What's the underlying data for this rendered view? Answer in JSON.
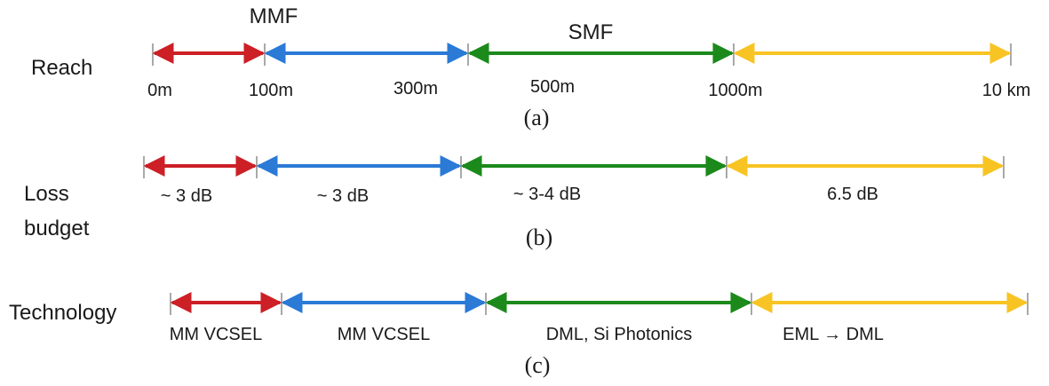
{
  "colors": {
    "red": "#cc1f26",
    "blue": "#2a7ad6",
    "green": "#1b8a1b",
    "yellow": "#f8c424",
    "tick": "#8c8c8c"
  },
  "rows": [
    {
      "id": "reach",
      "label_lines": [
        "Reach"
      ],
      "caption": "(a)",
      "top_labels": [
        "MMF",
        "SMF"
      ],
      "segments": [
        {
          "color": "red"
        },
        {
          "color": "blue"
        },
        {
          "color": "green"
        },
        {
          "color": "yellow"
        }
      ],
      "labels": [
        "0m",
        "100m",
        "300m",
        "500m",
        "1000m",
        "10 km"
      ]
    },
    {
      "id": "loss-budget",
      "label_lines": [
        "Loss",
        "budget"
      ],
      "caption": "(b)",
      "top_labels": [],
      "segments": [
        {
          "color": "red"
        },
        {
          "color": "blue"
        },
        {
          "color": "green"
        },
        {
          "color": "yellow"
        }
      ],
      "labels": [
        "~ 3 dB",
        "~ 3 dB",
        "~ 3-4 dB",
        "6.5 dB"
      ]
    },
    {
      "id": "technology",
      "label_lines": [
        "Technology"
      ],
      "caption": "(c)",
      "top_labels": [],
      "segments": [
        {
          "color": "red"
        },
        {
          "color": "blue"
        },
        {
          "color": "green"
        },
        {
          "color": "yellow"
        }
      ],
      "labels": [
        "MM VCSEL",
        "MM VCSEL",
        "DML, Si Photonics",
        "EML → DML"
      ]
    }
  ]
}
